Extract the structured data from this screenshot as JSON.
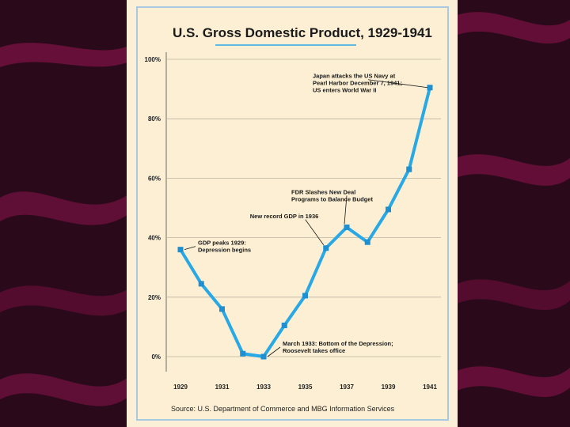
{
  "colors": {
    "background": "#2a0a1a",
    "stripe": "#6d0f3c",
    "panel": "#fcefd3",
    "line": "#29a8e6",
    "marker": "#1e8fd0",
    "frame": "#a9c9e0",
    "grid": "#bdb5a3"
  },
  "chart_data": {
    "type": "line",
    "title": "U.S. Gross Domestic Product, 1929-1941",
    "x": [
      1929,
      1930,
      1931,
      1932,
      1933,
      1934,
      1935,
      1936,
      1937,
      1938,
      1939,
      1940,
      1941
    ],
    "values": [
      36,
      24.5,
      16,
      1,
      0,
      10.5,
      20.5,
      36.5,
      43.5,
      38.5,
      49.5,
      63,
      90.5
    ],
    "xlim": [
      1929,
      1941
    ],
    "ylim": [
      0,
      100
    ],
    "y_ticks": [
      "0%",
      "20%",
      "40%",
      "60%",
      "80%",
      "100%"
    ],
    "x_ticks": [
      "1929",
      "1931",
      "1933",
      "1935",
      "1937",
      "1939",
      "1941"
    ],
    "grid": true,
    "annotations": [
      {
        "x": 1929,
        "y": 36,
        "lines": [
          "GDP peaks 1929:",
          "Depression begins"
        ]
      },
      {
        "x": 1933,
        "y": 0,
        "lines": [
          "March 1933: Bottom of the Depression;",
          "Roosevelt takes office"
        ]
      },
      {
        "x": 1936,
        "y": 36.5,
        "lines": [
          "New record GDP in 1936"
        ]
      },
      {
        "x": 1937,
        "y": 43.5,
        "lines": [
          "FDR Slashes New Deal",
          "Programs to Balance Budget"
        ]
      },
      {
        "x": 1941,
        "y": 90.5,
        "lines": [
          "Japan attacks the US Navy at",
          "Pearl Harbor December 7, 1941;",
          "US enters World War II"
        ]
      }
    ],
    "source": "Source: U.S. Department of Commerce and MBG Information Services"
  }
}
